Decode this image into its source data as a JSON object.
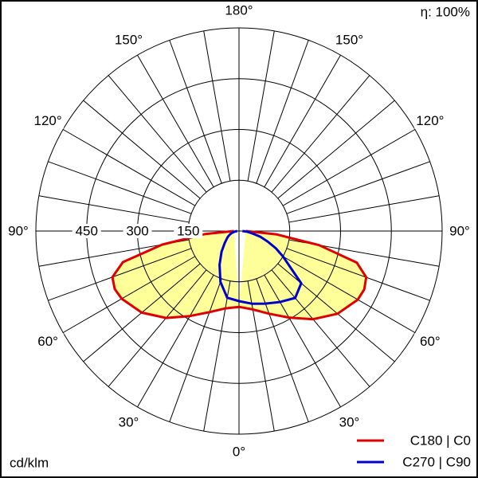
{
  "chart_data": {
    "type": "polar",
    "efficiency_label": "η: 100%",
    "unit_label": "cd/klm",
    "rlim": [
      0,
      600
    ],
    "rticks": [
      150,
      300,
      450
    ],
    "angle_grid_step": 10,
    "angle_ticks": [
      {
        "value": 0,
        "label": "0°"
      },
      {
        "value": 30,
        "label": "30°"
      },
      {
        "value": 60,
        "label": "60°"
      },
      {
        "value": 90,
        "label": "90°"
      },
      {
        "value": 120,
        "label": "120°"
      },
      {
        "value": 150,
        "label": "150°"
      },
      {
        "value": 180,
        "label": "180°"
      }
    ],
    "angles": [
      0,
      10,
      20,
      30,
      40,
      50,
      60,
      65,
      70,
      75,
      80,
      85,
      90
    ],
    "series": [
      {
        "name": "C180 | C0",
        "color": "#e00000",
        "fill": "#ffff99",
        "left": [
          224,
          232,
          255,
          290,
          335,
          375,
          400,
          405,
          398,
          355,
          230,
          100,
          15
        ],
        "right": [
          224,
          235,
          260,
          295,
          340,
          380,
          405,
          408,
          400,
          360,
          240,
          110,
          20
        ]
      },
      {
        "name": "C270 | C90",
        "color": "#0000cc",
        "left": [
          207,
          200,
          160,
          115,
          80,
          55,
          40,
          34,
          28,
          22,
          15,
          10,
          5
        ],
        "right": [
          207,
          218,
          228,
          242,
          258,
          240,
          150,
          120,
          90,
          65,
          40,
          25,
          10
        ]
      }
    ]
  }
}
